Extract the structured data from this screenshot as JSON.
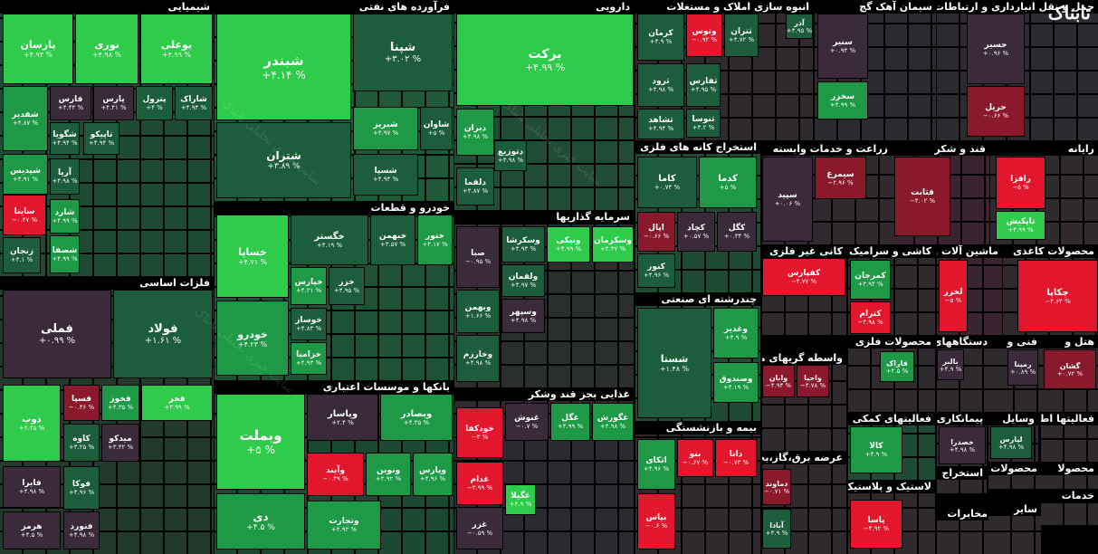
{
  "logo": "تابناک",
  "watermark": "سایت خبری تحلیلی تابناک",
  "sectors": [
    {
      "title": "شیمیایی",
      "tiles": [
        {
          "name": "پارسان",
          "change": "+۴.۹۳ %"
        },
        {
          "name": "نوری",
          "change": "+۴.۹۸ %"
        },
        {
          "name": "بوعلی",
          "change": "+۴.۹۹ %"
        },
        {
          "name": "شاراک",
          "change": "+۴.۹۴ %"
        },
        {
          "name": "پترول",
          "change": "+۴ %"
        },
        {
          "name": "پارس",
          "change": "+۴.۴۱ %"
        },
        {
          "name": "فارس",
          "change": "+۴.۴۴ %"
        },
        {
          "name": "شفدیر",
          "change": "+۴.۸۷ %"
        },
        {
          "name": "شگویا",
          "change": "+۴.۹۴ %"
        },
        {
          "name": "تاپیکو",
          "change": "+۴.۹۴ %"
        },
        {
          "name": "شپدیس",
          "change": "+۴.۹۱ %"
        },
        {
          "name": "آریا",
          "change": "+۴.۹۸ %"
        },
        {
          "name": "ساینا",
          "change": "−۰.۴۷ %"
        },
        {
          "name": "شارد",
          "change": "+۴.۹۹ %"
        },
        {
          "name": "زنجان",
          "change": "+۴.۱ %"
        },
        {
          "name": "شصفا",
          "change": "+۴.۹۹ %"
        }
      ]
    },
    {
      "title": "فلزات اساسی",
      "tiles": [
        {
          "name": "فملی",
          "change": "+۰.۹۹ %"
        },
        {
          "name": "فولاد",
          "change": "+۱.۶۱ %"
        },
        {
          "name": "ذوب",
          "change": "+۴.۲۵ %"
        },
        {
          "name": "فسپا",
          "change": "−۰.۴۶ %"
        },
        {
          "name": "فخوز",
          "change": "+۴.۳۵ %"
        },
        {
          "name": "فجر",
          "change": "+۴.۹۹ %"
        },
        {
          "name": "کاوه",
          "change": "+۴.۲۵ %"
        },
        {
          "name": "میدکو",
          "change": "+۳.۴۲ %"
        },
        {
          "name": "فایرا",
          "change": "+۴.۹۸ %"
        },
        {
          "name": "فوکا",
          "change": "+۴.۹۶ %"
        },
        {
          "name": "هرمز",
          "change": "+۴.۵ %"
        },
        {
          "name": "فنورد",
          "change": "+۴.۹۸ %"
        }
      ]
    },
    {
      "title": "فرآورده های نفتی",
      "tiles": [
        {
          "name": "شبندر",
          "change": "+۴.۱۴ %"
        },
        {
          "name": "شپنا",
          "change": "+۳.۰۲ %"
        },
        {
          "name": "شتران",
          "change": "+۳.۸۹ %"
        },
        {
          "name": "شبریز",
          "change": "+۴.۹۷ %"
        },
        {
          "name": "شاوان",
          "change": "+۵ %"
        },
        {
          "name": "شسپا",
          "change": "+۴.۹۳ %"
        }
      ]
    },
    {
      "title": "خودرو و قطعات",
      "tiles": [
        {
          "name": "خساپا",
          "change": "+۴.۷۱ %"
        },
        {
          "name": "خگستر",
          "change": "+۴.۱۹ %"
        },
        {
          "name": "خبهمن",
          "change": "+۳.۵۷ %"
        },
        {
          "name": "ختور",
          "change": "+۴.۱۷ %"
        },
        {
          "name": "خپارس",
          "change": "+۴.۲۱ %"
        },
        {
          "name": "خزر",
          "change": "+۴.۹۵ %"
        },
        {
          "name": "خودرو",
          "change": "+۴.۲۳ %"
        },
        {
          "name": "خوساز",
          "change": "+۴.۸۳ %"
        },
        {
          "name": "خزامیا",
          "change": "+۴.۹۳ %"
        }
      ]
    },
    {
      "title": "بانکها و موسسات اعتباری",
      "tiles": [
        {
          "name": "وبملت",
          "change": "+۵ %"
        },
        {
          "name": "وبصادر",
          "change": "+۴.۳۵ %"
        },
        {
          "name": "وپاسار",
          "change": "+۲.۴ %"
        },
        {
          "name": "وآیند",
          "change": "−۰.۴۹ %"
        },
        {
          "name": "ونوین",
          "change": "+۴.۹۲ %"
        },
        {
          "name": "وپارس",
          "change": "+۴.۹۶ %"
        },
        {
          "name": "دی",
          "change": "+۴.۵ %"
        },
        {
          "name": "وتجارت",
          "change": "+۴.۹۲ %"
        }
      ]
    },
    {
      "title": "دارویی",
      "tiles": [
        {
          "name": "برکت",
          "change": "+۴.۹۹ %"
        },
        {
          "name": "دیران",
          "change": "+۴.۹۸ %"
        },
        {
          "name": "دتوزیع",
          "change": "+۴.۹۸ %"
        },
        {
          "name": "دلقما",
          "change": "+۴.۸۷ %"
        }
      ]
    },
    {
      "title": "سرمایه گذاریها",
      "tiles": [
        {
          "name": "صبا",
          "change": "−۰.۹۵ %"
        },
        {
          "name": "وسکرشا",
          "change": "+۴.۹۳ %"
        },
        {
          "name": "ونیکی",
          "change": "+۴.۹۹ %"
        },
        {
          "name": "وسکرمان",
          "change": "+۴.۳۷ %"
        },
        {
          "name": "ولقمان",
          "change": "+۴.۹۷ %"
        },
        {
          "name": "وسپهر",
          "change": "+۴.۹۸ %"
        },
        {
          "name": "وبهمن",
          "change": "+۱.۶۶ %"
        },
        {
          "name": "وخارزم",
          "change": "+۴.۹۸ %"
        }
      ]
    },
    {
      "title": "غذایی بجز قند وشکر",
      "tiles": [
        {
          "name": "خودکفا",
          "change": "−۳ %"
        },
        {
          "name": "غنوش",
          "change": "−۰.۷ %"
        },
        {
          "name": "غگل",
          "change": "+۴.۹۹ %"
        },
        {
          "name": "غگورش",
          "change": "+۴.۹۸ %"
        },
        {
          "name": "غدام",
          "change": "−۳.۹۹ %"
        },
        {
          "name": "غگیلا",
          "change": "+۴.۹ %"
        },
        {
          "name": "غزر",
          "change": "−۰.۵۹ %"
        }
      ]
    },
    {
      "title": "انبوه سازی املاک و مستغلات",
      "tiles": [
        {
          "name": "کرمان",
          "change": "+۴.۹ %"
        },
        {
          "name": "وتوس",
          "change": "−۰.۹۲ %"
        },
        {
          "name": "ثتران",
          "change": "+۴.۷۲ %"
        },
        {
          "name": "آذر",
          "change": "+۴.۹۵ %"
        },
        {
          "name": "ثرود",
          "change": "+۴.۹۸ %"
        },
        {
          "name": "ثفارس",
          "change": "+۴.۹۵ %"
        },
        {
          "name": "ثشاهد",
          "change": "+۴.۹۴ %"
        },
        {
          "name": "ثنوسا",
          "change": "+۴.۲ %"
        }
      ]
    },
    {
      "title": "استخراج کانه های فلزی",
      "tiles": [
        {
          "name": "کاما",
          "change": "+۰.۷۳ %"
        },
        {
          "name": "کدما",
          "change": "+۵ %"
        },
        {
          "name": "اپال",
          "change": "−۰.۶۶ %"
        },
        {
          "name": "کچاد",
          "change": "+۰.۵۷ %"
        },
        {
          "name": "کگل",
          "change": "+۰.۳۴ %"
        },
        {
          "name": "کنور",
          "change": "+۴.۹۶ %"
        }
      ]
    },
    {
      "title": "چندرشته ای صنعتی",
      "tiles": [
        {
          "name": "شستا",
          "change": "+۱.۴۸ %"
        },
        {
          "name": "وغدیر",
          "change": "+۴.۹ %"
        },
        {
          "name": "وصندوق",
          "change": "+۴.۱۹ %"
        }
      ]
    },
    {
      "title": "بیمه و بازنشستگی",
      "tiles": [
        {
          "name": "اتکای",
          "change": "+۴.۹۶ %"
        },
        {
          "name": "بنو",
          "change": "−۰.۶۷ %"
        },
        {
          "name": "دانا",
          "change": "−۰.۷۳ %"
        },
        {
          "name": "بپاس",
          "change": "−۰.۶ %"
        }
      ]
    },
    {
      "title": "سیمان آهک گچ",
      "tiles": [
        {
          "name": "سنیر",
          "change": "+۰.۹۴ %"
        },
        {
          "name": "سخزر",
          "change": "+۴.۹۹ %"
        }
      ]
    },
    {
      "title": "حمل و نقل انبارداری و ارتباطات",
      "tiles": [
        {
          "name": "حسیر",
          "change": "+۰.۹۶ %"
        },
        {
          "name": "حریل",
          "change": "−۰.۶۶ %"
        }
      ]
    },
    {
      "title": "زراعت و خدمات وابسته",
      "tiles": [
        {
          "name": "سیمرغ",
          "change": "−۲.۹۶ %"
        },
        {
          "name": "سپید",
          "change": "+۰.۰۶ %"
        }
      ]
    },
    {
      "title": "قند و شکر",
      "tiles": [
        {
          "name": "قثابت",
          "change": "−۳.۰۲ %"
        }
      ]
    },
    {
      "title": "رایانه",
      "tiles": [
        {
          "name": "رافزا",
          "change": "−۵ %"
        },
        {
          "name": "تاپکیش",
          "change": "+۴.۹۹ %"
        }
      ]
    },
    {
      "title": "کانی غیر فلزی",
      "tiles": [
        {
          "name": "کفپارس",
          "change": "−۴.۷۷ %"
        }
      ]
    },
    {
      "title": "کاشی و سرامیک",
      "tiles": [
        {
          "name": "کمرجان",
          "change": "+۴.۹۴ %"
        },
        {
          "name": "کترام",
          "change": "−۴.۹۸ %"
        }
      ]
    },
    {
      "title": "ماشین آلات و",
      "tiles": [
        {
          "name": "لخزر",
          "change": "−۵ %"
        }
      ]
    },
    {
      "title": "محصولات کاغذی",
      "tiles": [
        {
          "name": "چکاپا",
          "change": "−۴.۶۴ %"
        }
      ]
    },
    {
      "title": "واسطه گریهای مالی و",
      "tiles": [
        {
          "name": "وابان",
          "change": "−۴.۹۴ %"
        },
        {
          "name": "واحیا",
          "change": "−۴.۷۸ %"
        }
      ]
    },
    {
      "title": "محصولات فلزی",
      "tiles": [
        {
          "name": "فاراک",
          "change": "+۴.۵ %"
        }
      ]
    },
    {
      "title": "دستگاههای",
      "tiles": [
        {
          "name": "بالبر",
          "change": "+۴.۹ %"
        }
      ]
    },
    {
      "title": "فنی و",
      "tiles": [
        {
          "name": "رمپنا",
          "change": "+۰.۸۹ %"
        }
      ]
    },
    {
      "title": "هتل و",
      "tiles": [
        {
          "name": "گشان",
          "change": "+۰.۷۲ %"
        }
      ]
    },
    {
      "title": "عرضه برق،گاز،بخار",
      "tiles": [
        {
          "name": "دماوند",
          "change": "−۰.۷۱ %"
        },
        {
          "name": "آبادا",
          "change": "+۴.۹ %"
        }
      ]
    },
    {
      "title": "فعالیتهای کمکی به",
      "tiles": [
        {
          "name": "کالا",
          "change": "+۴.۹ %"
        }
      ]
    },
    {
      "title": "لاستیک و پلاستیک",
      "tiles": [
        {
          "name": "پاسا",
          "change": "−۴.۹۲ %"
        }
      ]
    },
    {
      "title": "پیمانکاری",
      "tiles": [
        {
          "name": "خصدرا",
          "change": "+۴.۹۸ %"
        }
      ]
    },
    {
      "title": "وسایل",
      "tiles": [
        {
          "name": "لپارس",
          "change": "+۴.۹۸ %"
        }
      ]
    },
    {
      "title": "فعالیتها اطلاعات",
      "tiles": []
    },
    {
      "title": "استخراج",
      "tiles": []
    },
    {
      "title": "محصولا",
      "tiles": []
    },
    {
      "title": "محصولات منسوجا",
      "tiles": []
    },
    {
      "title": "مخابرات",
      "tiles": []
    },
    {
      "title": "خدمات",
      "tiles": []
    },
    {
      "title": "سایر",
      "tiles": []
    }
  ]
}
